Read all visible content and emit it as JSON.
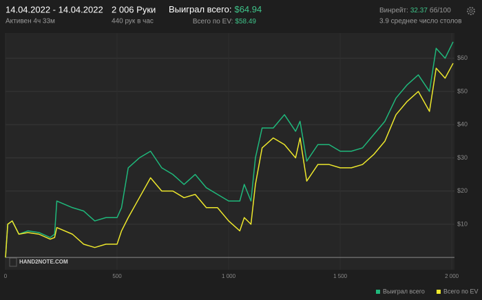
{
  "header": {
    "date_range": "14.04.2022 - 14.04.2022",
    "active": "Активен 4ч 33м",
    "hands": "2 006 Руки",
    "hands_per_hour": "440 рук в час",
    "won_label": "Выиграл всего:",
    "won_value": "$64.94",
    "ev_label": "Всего по EV:",
    "ev_value": "$58.49",
    "winrate_label": "Винрейт:",
    "winrate_value": "32.37",
    "winrate_unit": "бб/100",
    "tables": "3.9 среднее число столов"
  },
  "logo": "HAND2NOTE.COM",
  "chart_data": {
    "type": "line",
    "x": [
      0,
      10,
      30,
      60,
      100,
      150,
      200,
      220,
      230,
      300,
      350,
      400,
      450,
      500,
      520,
      550,
      600,
      650,
      700,
      750,
      800,
      850,
      900,
      950,
      1000,
      1050,
      1070,
      1100,
      1120,
      1150,
      1200,
      1250,
      1300,
      1320,
      1350,
      1400,
      1450,
      1500,
      1550,
      1600,
      1650,
      1700,
      1750,
      1800,
      1850,
      1900,
      1930,
      1970,
      2006
    ],
    "series": [
      {
        "name": "Выиграл всего",
        "color": "#1fb97c",
        "values": [
          0,
          10,
          11,
          7,
          8,
          7.5,
          6,
          7,
          17,
          15,
          14,
          11,
          12,
          12,
          15,
          27,
          30,
          32,
          27,
          25,
          22,
          25,
          21,
          19,
          17,
          17,
          22,
          17,
          30,
          39,
          39,
          43,
          38,
          41,
          29,
          34,
          34,
          32,
          32,
          33,
          37,
          41,
          48,
          52,
          55,
          50,
          63,
          60,
          64.94
        ]
      },
      {
        "name": "Всего по EV",
        "color": "#eee82c",
        "values": [
          0,
          10,
          11,
          7,
          7.5,
          7,
          5.5,
          6,
          9,
          7,
          4,
          3,
          4,
          4,
          8,
          12,
          18,
          24,
          20,
          20,
          18,
          19,
          15,
          15,
          11,
          8,
          12,
          10,
          22,
          33,
          36,
          34,
          30,
          36,
          23,
          28,
          28,
          27,
          27,
          28,
          31,
          35,
          43,
          47,
          50,
          44,
          57,
          54,
          58.49
        ]
      }
    ],
    "xlim": [
      0,
      2012
    ],
    "xticks": [
      0,
      500,
      {
        "value": 1000,
        "label": "1 000"
      },
      {
        "value": 1500,
        "label": "1 500"
      },
      {
        "value": 2000,
        "label": "2 000"
      }
    ],
    "ylim": [
      -3.7,
      67.6
    ],
    "yticks": [
      {
        "value": 10,
        "label": "$10"
      },
      {
        "value": 20,
        "label": "$20"
      },
      {
        "value": 30,
        "label": "$30"
      },
      {
        "value": 40,
        "label": "$40"
      },
      {
        "value": 50,
        "label": "$50"
      },
      {
        "value": 60,
        "label": "$60"
      }
    ],
    "grid": true,
    "legend": "bottom-right"
  }
}
